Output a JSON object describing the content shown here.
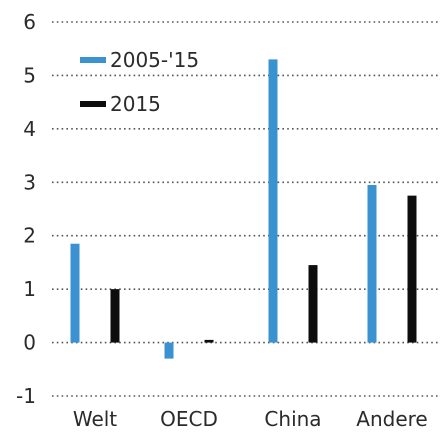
{
  "chart_data": {
    "type": "bar",
    "categories": [
      "Welt",
      "OECD",
      "China",
      "Andere"
    ],
    "series": [
      {
        "name": "2005-'15",
        "values": [
          1.85,
          -0.3,
          5.3,
          2.95
        ]
      },
      {
        "name": "2015",
        "values": [
          1.0,
          0.05,
          1.45,
          2.75
        ]
      }
    ],
    "yticks": [
      "-1",
      "0",
      "1",
      "2",
      "3",
      "4",
      "5",
      "6"
    ],
    "ylim": [
      -1,
      6
    ],
    "grid": true,
    "legend_position": "top-left",
    "colors": {
      "series_0": "#3a93d0",
      "series_1": "#0d0d0d",
      "grid": "#555555"
    }
  }
}
